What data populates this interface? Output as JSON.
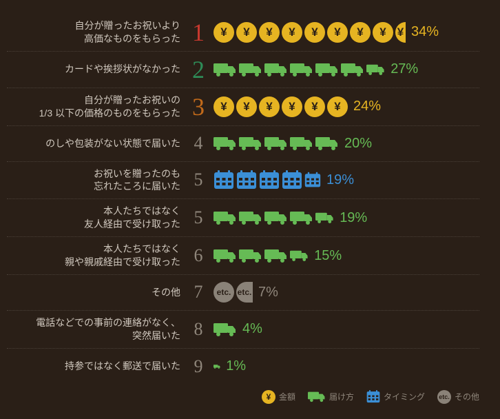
{
  "chart": {
    "background": "#2a1f17",
    "divider_color": "#4a4038",
    "label_color": "#d0c8be",
    "rows": [
      {
        "label_lines": [
          "自分が贈ったお祝いより",
          "高価なものをもらった"
        ],
        "rank": "1",
        "rank_color": "#c7382e",
        "rank_size": 36,
        "icon_type": "yen",
        "icon_count": 8.5,
        "pct": "34%",
        "pct_color": "#e6b422"
      },
      {
        "label_lines": [
          "カードや挨拶状がなかった"
        ],
        "rank": "2",
        "rank_color": "#2e8b57",
        "rank_size": 36,
        "icon_type": "truck",
        "icon_count": 6.8,
        "pct": "27%",
        "pct_color": "#66bb55"
      },
      {
        "label_lines": [
          "自分が贈ったお祝いの",
          "1/3 以下の価格のものをもらった"
        ],
        "rank": "3",
        "rank_color": "#c26a1a",
        "rank_size": 36,
        "icon_type": "yen",
        "icon_count": 6,
        "pct": "24%",
        "pct_color": "#e6b422"
      },
      {
        "label_lines": [
          "のしや包装がない状態で届いた"
        ],
        "rank": "4",
        "rank_color": "#8f867b",
        "rank_size": 26,
        "icon_type": "truck",
        "icon_count": 5,
        "pct": "20%",
        "pct_color": "#66bb55"
      },
      {
        "label_lines": [
          "お祝いを贈ったのも",
          "忘れたころに届いた"
        ],
        "rank": "5",
        "rank_color": "#8f867b",
        "rank_size": 26,
        "icon_type": "cal",
        "icon_count": 4.8,
        "pct": "19%",
        "pct_color": "#3b8fd6"
      },
      {
        "label_lines": [
          "本人たちではなく",
          "友人経由で受け取った"
        ],
        "rank": "5",
        "rank_color": "#8f867b",
        "rank_size": 26,
        "icon_type": "truck",
        "icon_count": 4.8,
        "pct": "19%",
        "pct_color": "#66bb55"
      },
      {
        "label_lines": [
          "本人たちではなく",
          "親や親戚経由で受け取った"
        ],
        "rank": "6",
        "rank_color": "#8f867b",
        "rank_size": 26,
        "icon_type": "truck",
        "icon_count": 3.8,
        "pct": "15%",
        "pct_color": "#66bb55"
      },
      {
        "label_lines": [
          "その他"
        ],
        "rank": "7",
        "rank_color": "#8f867b",
        "rank_size": 26,
        "icon_type": "etc",
        "icon_count": 1.8,
        "pct": "7%",
        "pct_color": "#8f867b"
      },
      {
        "label_lines": [
          "電話などでの事前の連絡がなく、",
          "突然届いた"
        ],
        "rank": "8",
        "rank_color": "#8f867b",
        "rank_size": 26,
        "icon_type": "truck",
        "icon_count": 1,
        "pct": "4%",
        "pct_color": "#66bb55"
      },
      {
        "label_lines": [
          "持参ではなく郵送で届いた"
        ],
        "rank": "9",
        "rank_color": "#8f867b",
        "rank_size": 26,
        "icon_type": "truck",
        "icon_count": 0.3,
        "pct": "1%",
        "pct_color": "#66bb55"
      }
    ]
  },
  "legend": {
    "items": [
      {
        "type": "yen",
        "label": "金額"
      },
      {
        "type": "truck",
        "label": "届け方"
      },
      {
        "type": "cal",
        "label": "タイミング"
      },
      {
        "type": "etc",
        "label": "その他"
      }
    ]
  },
  "icons": {
    "yen": {
      "glyph": "¥",
      "bg": "#e6b422",
      "fg": "#2a1f17"
    },
    "truck": {
      "fill": "#66bb55"
    },
    "cal": {
      "fill": "#3b8fd6"
    },
    "etc": {
      "glyph": "etc.",
      "bg": "#8a8278",
      "fg": "#2a1f17"
    }
  }
}
